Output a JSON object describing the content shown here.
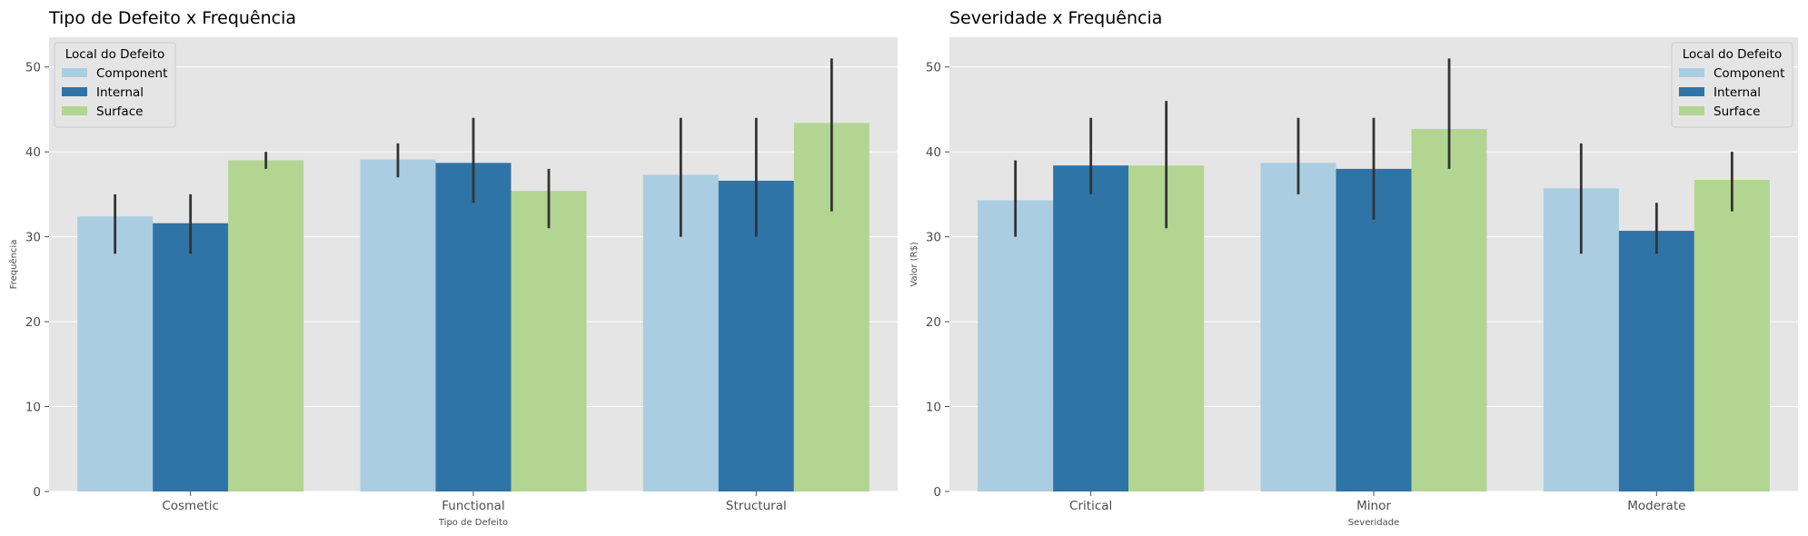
{
  "colors": {
    "Component": "#abcde2",
    "Internal": "#2f74a6",
    "Surface": "#b3d592",
    "errbar": "#333333",
    "panel": "#e5e5e5",
    "grid": "#ffffff"
  },
  "chart_data": [
    {
      "type": "bar",
      "title": "Tipo de Defeito x Frequência",
      "xlabel": "Tipo de Defeito",
      "ylabel": "Frequência",
      "ylim": [
        0,
        53.5
      ],
      "yticks": [
        0,
        10,
        20,
        30,
        40,
        50
      ],
      "grid": true,
      "legend": {
        "title": "Local do Defeito",
        "position": "top-left"
      },
      "categories": [
        "Cosmetic",
        "Functional",
        "Structural"
      ],
      "series": [
        {
          "name": "Component",
          "values": [
            32.4,
            39.1,
            37.3
          ],
          "err_low": [
            28,
            37,
            30
          ],
          "err_high": [
            35,
            41,
            44
          ]
        },
        {
          "name": "Internal",
          "values": [
            31.6,
            38.7,
            36.6
          ],
          "err_low": [
            28,
            34,
            30
          ],
          "err_high": [
            35,
            44,
            44
          ]
        },
        {
          "name": "Surface",
          "values": [
            39.0,
            35.4,
            43.4
          ],
          "err_low": [
            38,
            31,
            33
          ],
          "err_high": [
            40,
            38,
            51
          ]
        }
      ]
    },
    {
      "type": "bar",
      "title": "Severidade x Frequência",
      "xlabel": "Severidade",
      "ylabel": "Valor (R$)",
      "ylim": [
        0,
        53.5
      ],
      "yticks": [
        0,
        10,
        20,
        30,
        40,
        50
      ],
      "grid": true,
      "legend": {
        "title": "Local do Defeito",
        "position": "top-right"
      },
      "categories": [
        "Critical",
        "Minor",
        "Moderate"
      ],
      "series": [
        {
          "name": "Component",
          "values": [
            34.3,
            38.7,
            35.7
          ],
          "err_low": [
            30,
            35,
            28
          ],
          "err_high": [
            39,
            44,
            41
          ]
        },
        {
          "name": "Internal",
          "values": [
            38.4,
            38.0,
            30.7
          ],
          "err_low": [
            35,
            32,
            28
          ],
          "err_high": [
            44,
            44,
            34
          ]
        },
        {
          "name": "Surface",
          "values": [
            38.4,
            42.7,
            36.7
          ],
          "err_low": [
            31,
            38,
            33
          ],
          "err_high": [
            46,
            51,
            40
          ]
        }
      ]
    }
  ]
}
